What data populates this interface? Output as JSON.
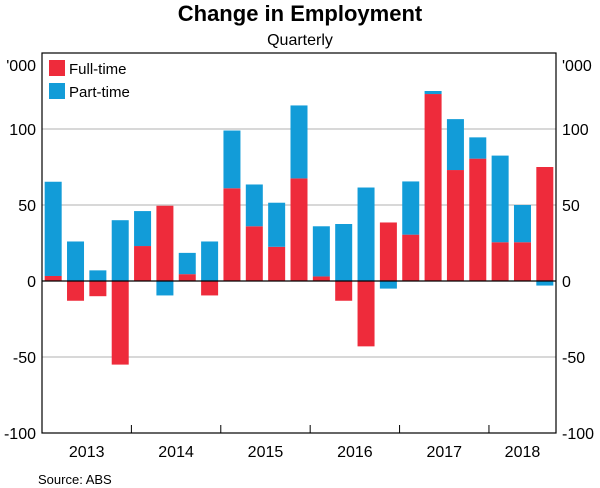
{
  "chart_data": {
    "type": "bar",
    "stacked": true,
    "title": "Change in Employment",
    "subtitle": "Quarterly",
    "ylabel_left": "'000",
    "ylabel_right": "'000",
    "ylim": [
      -100,
      150
    ],
    "yticks": [
      -100,
      -50,
      0,
      50,
      100
    ],
    "ytick_labels": [
      "-100",
      "-50",
      "0",
      "50",
      "100"
    ],
    "year_labels": [
      "2013",
      "2014",
      "2015",
      "2016",
      "2017",
      "2018"
    ],
    "categories": [
      "2013 Q1",
      "2013 Q2",
      "2013 Q3",
      "2013 Q4",
      "2014 Q1",
      "2014 Q2",
      "2014 Q3",
      "2014 Q4",
      "2015 Q1",
      "2015 Q2",
      "2015 Q3",
      "2015 Q4",
      "2016 Q1",
      "2016 Q2",
      "2016 Q3",
      "2016 Q4",
      "2017 Q1",
      "2017 Q2",
      "2017 Q3",
      "2017 Q4",
      "2018 Q1",
      "2018 Q2",
      "2018 Q3"
    ],
    "series": [
      {
        "name": "Full-time",
        "color": "#ee2b3b",
        "values": [
          3.3,
          -13,
          -10,
          -55,
          23,
          49.5,
          4.5,
          -9.5,
          61,
          36,
          22.5,
          67.5,
          3,
          -13,
          -43,
          38.5,
          30.5,
          123,
          73,
          80.5,
          25.5,
          25.5,
          75
        ]
      },
      {
        "name": "Part-time",
        "color": "#129cd8",
        "values": [
          62,
          26,
          7,
          40,
          23,
          -9.5,
          14,
          26,
          38,
          27.5,
          29,
          48,
          33,
          37.5,
          61.5,
          -5,
          35,
          2,
          33.5,
          14,
          57,
          24.5,
          -3
        ]
      }
    ],
    "grid": true,
    "legend": "top-left",
    "source": "Source:   ABS"
  }
}
